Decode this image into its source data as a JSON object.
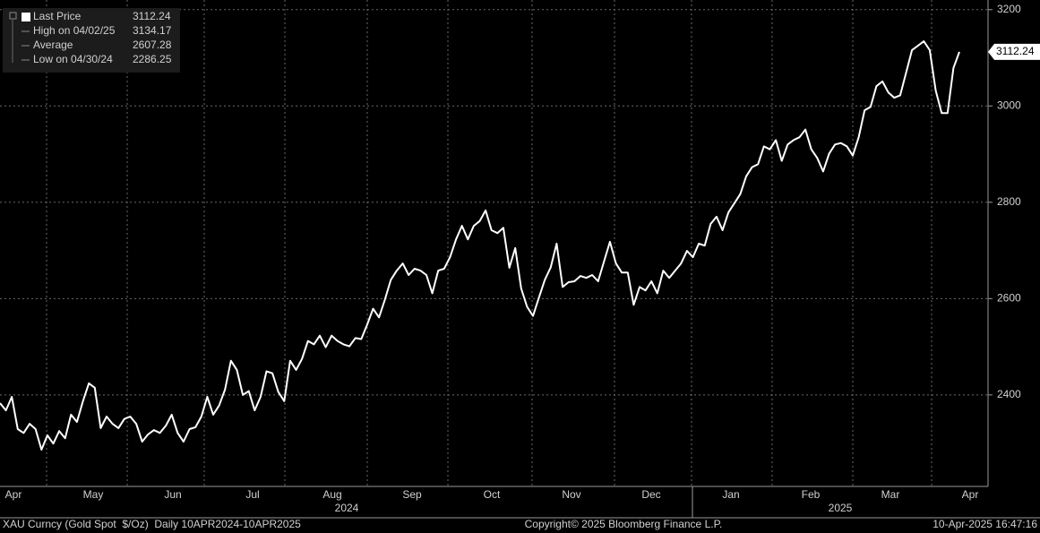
{
  "chart_data": {
    "type": "line",
    "color": "#ffffff",
    "values": [
      2383,
      2368,
      2396,
      2329,
      2321,
      2340,
      2329,
      2286.25,
      2316,
      2299,
      2325,
      2310,
      2359,
      2344,
      2387,
      2424,
      2415,
      2331,
      2355,
      2340,
      2331,
      2350,
      2355,
      2340,
      2303,
      2318,
      2327,
      2321,
      2336,
      2359,
      2321,
      2303,
      2329,
      2333,
      2355,
      2396,
      2359,
      2378,
      2411,
      2471,
      2452,
      2400,
      2408,
      2368,
      2396,
      2449,
      2445,
      2406,
      2387,
      2471,
      2452,
      2475,
      2512,
      2505,
      2523,
      2499,
      2523,
      2512,
      2505,
      2501,
      2518,
      2516,
      2546,
      2579,
      2561,
      2598,
      2639,
      2658,
      2673,
      2649,
      2662,
      2658,
      2649,
      2611,
      2658,
      2662,
      2686,
      2723,
      2751,
      2723,
      2751,
      2761,
      2783,
      2742,
      2736,
      2747,
      2664,
      2705,
      2621,
      2583,
      2564,
      2602,
      2639,
      2665,
      2714,
      2624,
      2634,
      2636,
      2647,
      2643,
      2649,
      2636,
      2677,
      2718,
      2673,
      2654,
      2654,
      2587,
      2624,
      2617,
      2636,
      2611,
      2658,
      2643,
      2658,
      2673,
      2699,
      2686,
      2714,
      2710,
      2755,
      2770,
      2742,
      2779,
      2798,
      2817,
      2854,
      2873,
      2879,
      2916,
      2910,
      2929,
      2886,
      2920,
      2929,
      2935,
      2951,
      2910,
      2892,
      2864,
      2901,
      2920,
      2923,
      2916,
      2897,
      2935,
      2991,
      2998,
      3041,
      3051,
      3028,
      3017,
      3022,
      3069,
      3116,
      3125,
      3134.17,
      3116,
      3032,
      2985,
      2985,
      3079,
      3112.24
    ],
    "ylim": [
      2210,
      3220
    ],
    "yticks": [
      2400,
      2600,
      2800,
      3000,
      3200
    ],
    "grid": true,
    "x_axis": {
      "months": [
        "Apr",
        "May",
        "Jun",
        "Jul",
        "Aug",
        "Sep",
        "Oct",
        "Nov",
        "Dec",
        "Jan",
        "Feb",
        "Mar",
        "Apr"
      ],
      "years": [
        "2024",
        "2025"
      ]
    },
    "legend": [
      {
        "label": "Last Price",
        "value": 3112.24
      },
      {
        "label": "High on 04/02/25",
        "value": 3134.17
      },
      {
        "label": "Average",
        "value": 2607.28
      },
      {
        "label": "Low on 04/30/24",
        "value": 2286.25
      }
    ]
  },
  "footer": {
    "left": "XAU Curncy (Gold Spot  $/Oz)  Daily 10APR2024-10APR2025",
    "center": "Copyright© 2025 Bloomberg Finance L.P.",
    "right": "10-Apr-2025 16:47:16"
  }
}
